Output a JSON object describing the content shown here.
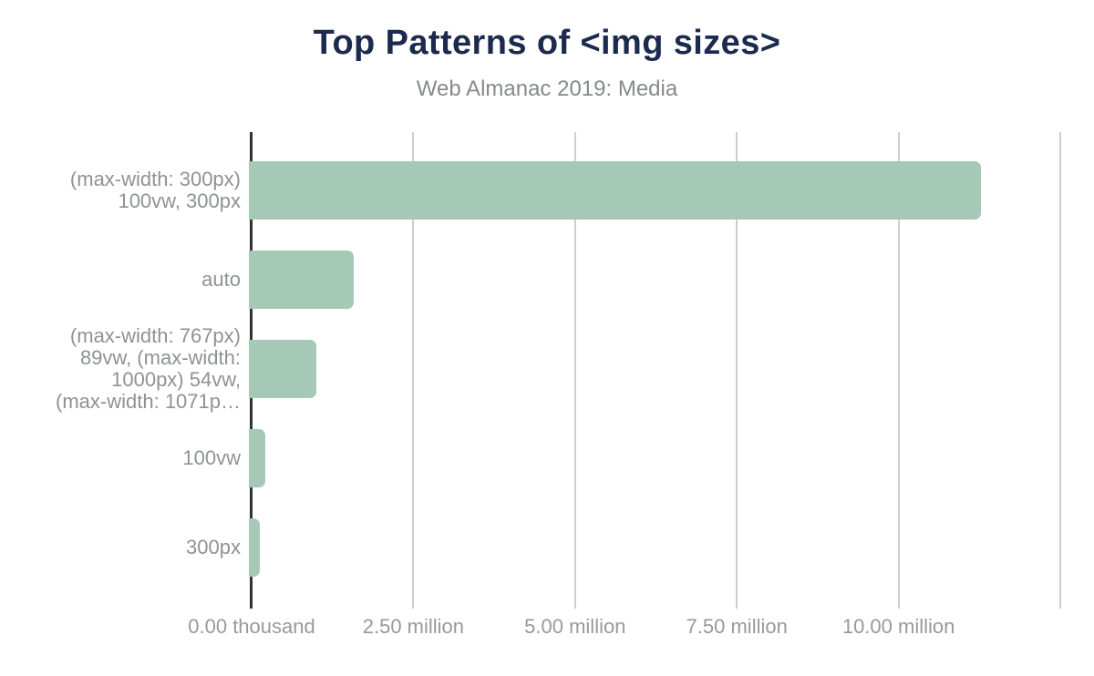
{
  "colors": {
    "background": "#ffffff",
    "title": "#1b2a4e",
    "subtitle": "#868a8c",
    "bar": "#a6c9b7",
    "axis_line": "#323232",
    "gridline": "#cdcdcd",
    "y_label": "#8f9294",
    "x_label": "#97999c"
  },
  "chart_data": {
    "type": "bar",
    "orientation": "horizontal",
    "title": "Top Patterns of <img sizes>",
    "subtitle": "Web Almanac 2019: Media",
    "categories": [
      "(max-width: 300px) 100vw, 300px",
      "auto",
      "(max-width: 767px) 89vw, (max-width: 1000px) 54vw, (max-width: 1071p…",
      "100vw",
      "300px"
    ],
    "category_label_lines": [
      [
        "(max-width: 300px)",
        "100vw, 300px"
      ],
      [
        "auto"
      ],
      [
        "(max-width: 767px)",
        "89vw, (max-width:",
        "1000px) 54vw,",
        "(max-width: 1071p…"
      ],
      [
        "100vw"
      ],
      [
        "300px"
      ]
    ],
    "values": [
      11280000,
      1580000,
      1000000,
      210000,
      130000
    ],
    "xlabel": "",
    "ylabel": "",
    "xlim": [
      0,
      12500000
    ],
    "x_ticks": [
      {
        "value": 0,
        "label": "0.00 thousand"
      },
      {
        "value": 2500000,
        "label": "2.50 million"
      },
      {
        "value": 5000000,
        "label": "5.00 million"
      },
      {
        "value": 7500000,
        "label": "7.50 million"
      },
      {
        "value": 10000000,
        "label": "10.00 million"
      },
      {
        "value": 12500000,
        "label": ""
      }
    ],
    "grid": true,
    "legend": false
  }
}
